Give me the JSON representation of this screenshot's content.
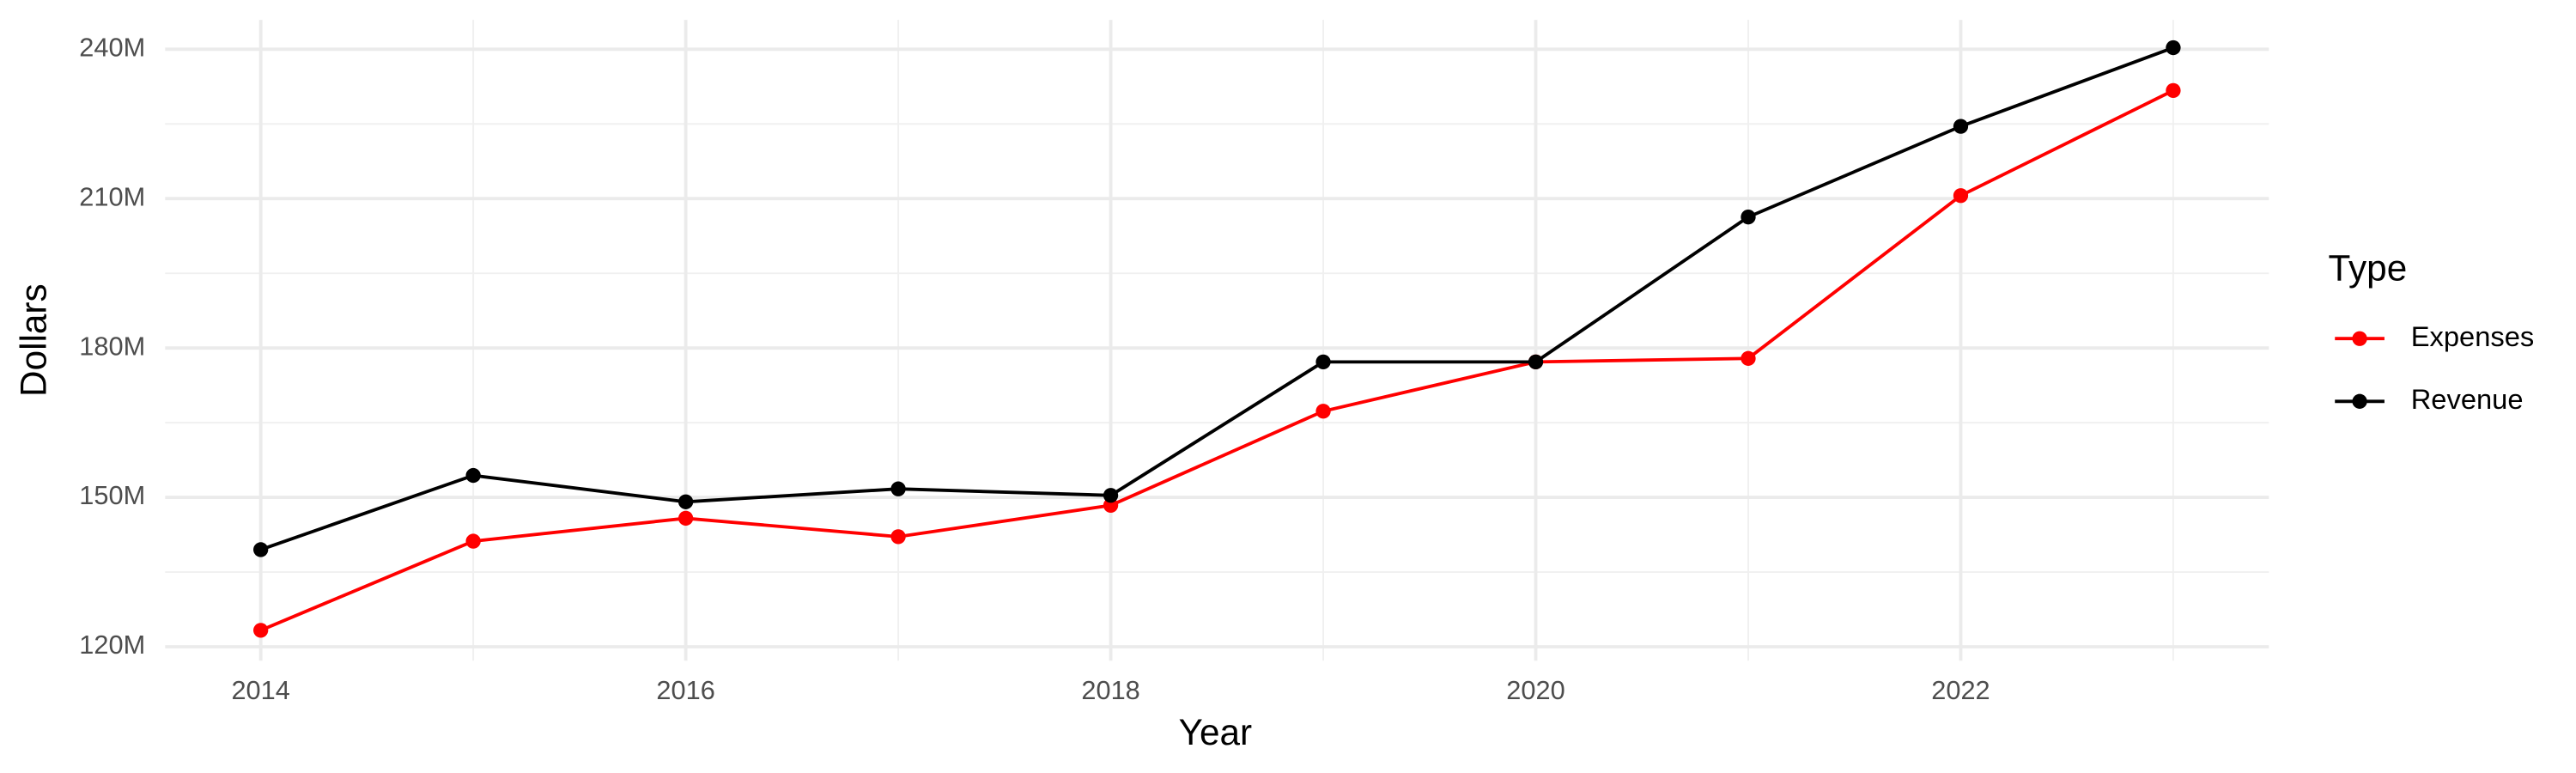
{
  "chart_data": {
    "type": "line",
    "x": [
      2014,
      2015,
      2016,
      2017,
      2018,
      2019,
      2020,
      2021,
      2022,
      2023
    ],
    "series": [
      {
        "name": "Expenses",
        "color": "#ff0000",
        "values": [
          123.3,
          141.2,
          145.8,
          142.1,
          148.4,
          167.3,
          177.2,
          177.9,
          210.6,
          231.7
        ]
      },
      {
        "name": "Revenue",
        "color": "#000000",
        "values": [
          139.5,
          154.4,
          149.1,
          151.7,
          150.4,
          177.2,
          177.2,
          206.3,
          224.5,
          240.3
        ]
      }
    ],
    "x_label": "Year",
    "y_label": "Dollars",
    "legend_title": "Type",
    "legend_position": "right",
    "xlim": [
      2013.55,
      2023.45
    ],
    "xticks": [
      2014,
      2016,
      2018,
      2020,
      2022
    ],
    "ylim": [
      117.2,
      245.9
    ],
    "yticks": [
      {
        "value": 120,
        "label": "120M"
      },
      {
        "value": 150,
        "label": "150M"
      },
      {
        "value": 180,
        "label": "180M"
      },
      {
        "value": 210,
        "label": "210M"
      },
      {
        "value": 240,
        "label": "240M"
      }
    ],
    "grid": true
  }
}
